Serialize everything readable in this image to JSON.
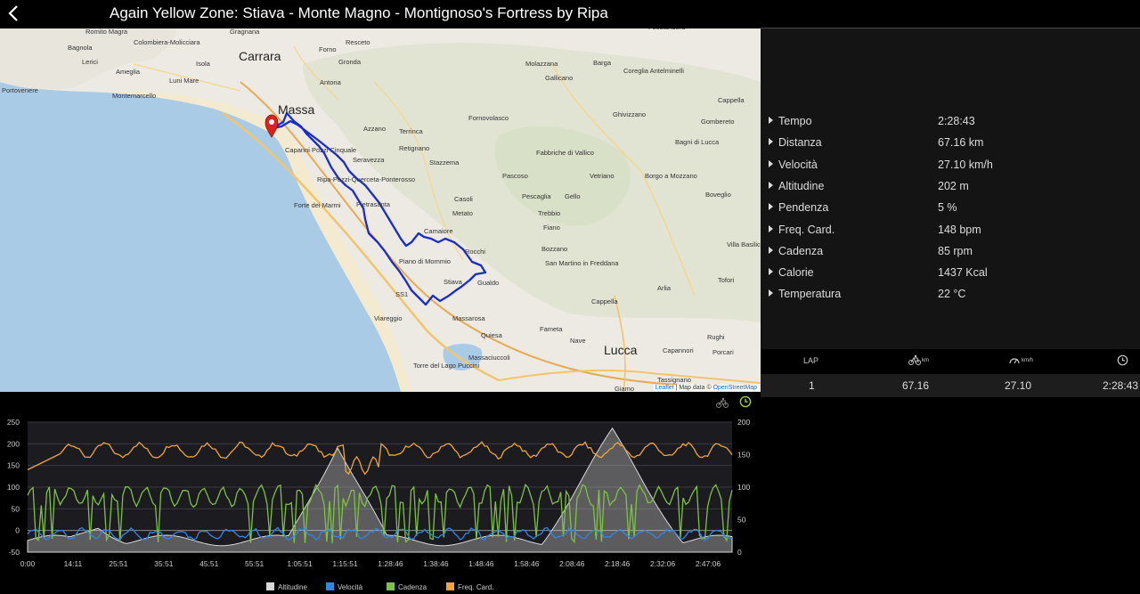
{
  "header": {
    "title": "Again Yellow Zone: Stiava - Monte Magno - Montignoso's Fortress by Ripa",
    "back_icon": "chevron-left-icon"
  },
  "map": {
    "labels": [
      {
        "text": "Romito Magra"
      },
      {
        "text": "Gragnana"
      },
      {
        "text": "Bagnola"
      },
      {
        "text": "Colombiera-Molicciara"
      },
      {
        "text": "Carrara"
      },
      {
        "text": "Resceto"
      },
      {
        "text": "Forno"
      },
      {
        "text": "Lerici"
      },
      {
        "text": "Ameglia"
      },
      {
        "text": "Isola"
      },
      {
        "text": "Luni Mare"
      },
      {
        "text": "Gronda"
      },
      {
        "text": "Fosciandora"
      },
      {
        "text": "Molazzana"
      },
      {
        "text": "Barga"
      },
      {
        "text": "Coreglia Antelminelli"
      },
      {
        "text": "Gallicano"
      },
      {
        "text": "Portovenere"
      },
      {
        "text": "Montemarcello"
      },
      {
        "text": "Antona"
      },
      {
        "text": "Cappella"
      },
      {
        "text": "Massa"
      },
      {
        "text": "Ghivizzano"
      },
      {
        "text": "Gombereto"
      },
      {
        "text": "Azzano"
      },
      {
        "text": "Fornovolasco"
      },
      {
        "text": "Terrinca"
      },
      {
        "text": "Bagni di Lucca"
      },
      {
        "text": "Retignano"
      },
      {
        "text": "Capanni Pozzi Cinquale"
      },
      {
        "text": "Seravezza"
      },
      {
        "text": "Fabbriche di Vallico"
      },
      {
        "text": "Stazzema"
      },
      {
        "text": "Pascoso"
      },
      {
        "text": "Vetriano"
      },
      {
        "text": "Borgo a Mozzano"
      },
      {
        "text": "Ripa-Pozzi-Querceta-Ponterosso"
      },
      {
        "text": "Boveglio"
      },
      {
        "text": "Casoli"
      },
      {
        "text": "Pescaglia"
      },
      {
        "text": "Gello"
      },
      {
        "text": "Forte dei Marmi"
      },
      {
        "text": "Pietrasanta"
      },
      {
        "text": "Metato"
      },
      {
        "text": "Trebbio"
      },
      {
        "text": "Camaiore"
      },
      {
        "text": "Fiano"
      },
      {
        "text": "Villa Basilica"
      },
      {
        "text": "Rocchi"
      },
      {
        "text": "Bozzano"
      },
      {
        "text": "Piano di Mommio"
      },
      {
        "text": "San Martino in Freddana"
      },
      {
        "text": "Stiava"
      },
      {
        "text": "Gualdo"
      },
      {
        "text": "Tofori"
      },
      {
        "text": "Arlia"
      },
      {
        "text": "SS1"
      },
      {
        "text": "Cappella"
      },
      {
        "text": "Viareggio"
      },
      {
        "text": "Massarosa"
      },
      {
        "text": "Fameta"
      },
      {
        "text": "Quiesa"
      },
      {
        "text": "Nave"
      },
      {
        "text": "Rughi"
      },
      {
        "text": "Massaciuccoli"
      },
      {
        "text": "Lucca"
      },
      {
        "text": "Capannori"
      },
      {
        "text": "Porcari"
      },
      {
        "text": "Torre del Lago Puccini"
      },
      {
        "text": "Giamo"
      },
      {
        "text": "Tassignano"
      }
    ],
    "marker_icon": "map-pin-icon",
    "attribution": {
      "leaflet": "Leaflet",
      "sep": " | Map data © ",
      "osm": "OpenStreetMap"
    }
  },
  "stats": [
    {
      "label": "Tempo",
      "value": "2:28:43"
    },
    {
      "label": "Distanza",
      "value": "67.16 km"
    },
    {
      "label": "Velocità",
      "value": "27.10 km/h"
    },
    {
      "label": "Altitudine",
      "value": "202 m"
    },
    {
      "label": "Pendenza",
      "value": "5 %"
    },
    {
      "label": "Freq. Card.",
      "value": "148 bpm"
    },
    {
      "label": "Cadenza",
      "value": "85 rpm"
    },
    {
      "label": "Calorie",
      "value": "1437 Kcal"
    },
    {
      "label": "Temperatura",
      "value": "22 °C"
    }
  ],
  "laps": {
    "headers": {
      "lap": "LAP",
      "distance_icon": "cycling-icon",
      "distance_unit": "km",
      "speed_icon": "speedometer-icon",
      "speed_unit": "km/h",
      "time_icon": "clock-icon"
    },
    "rows": [
      {
        "lap": "1",
        "distance": "67.16",
        "speed": "27.10",
        "time": "2:28:43"
      }
    ]
  },
  "chart_toolbar": {
    "distance_icon": "cycling-icon",
    "time_icon": "clock-icon",
    "active": "time"
  },
  "chart_data": {
    "type": "line",
    "x_ticks": [
      "0:00",
      "14:11",
      "25:51",
      "35:51",
      "45:51",
      "55:51",
      "1:05:51",
      "1:15:51",
      "1:28:46",
      "1:38:46",
      "1:48:46",
      "1:58:46",
      "2:08:46",
      "2:18:46",
      "2:32:06",
      "2:47:06"
    ],
    "y_left": {
      "ticks": [
        250,
        200,
        150,
        100,
        50,
        0,
        -50
      ],
      "range": [
        -50,
        250
      ]
    },
    "y_right": {
      "ticks": [
        200,
        150,
        100,
        50,
        0
      ],
      "range": [
        0,
        200
      ]
    },
    "colors": {
      "altitude": "#d8d8d8",
      "speed": "#2f86e8",
      "cadence": "#7dc242",
      "heart_rate": "#f0a43a"
    },
    "series": [
      {
        "name": "Altitudine",
        "color": "#d8d8d8"
      },
      {
        "name": "Velocità",
        "color": "#2f86e8"
      },
      {
        "name": "Cadenza",
        "color": "#7dc242"
      },
      {
        "name": "Freq. Card.",
        "color": "#f0a43a"
      }
    ],
    "legend_position": "bottom-center"
  }
}
